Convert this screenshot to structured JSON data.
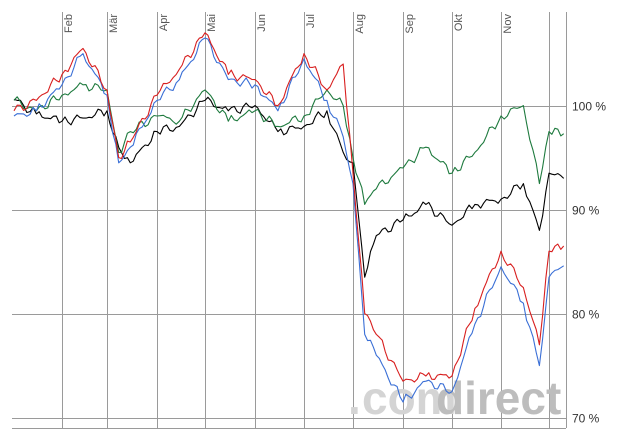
{
  "watermark": {
    "dot": ".",
    "com": "com",
    "direct": "direct"
  },
  "chart_data": {
    "type": "line",
    "title": "",
    "xlabel": "",
    "ylabel": "",
    "ylim": [
      69,
      109
    ],
    "x_ticks": [
      "Feb",
      "Mär",
      "Apr",
      "Mai",
      "Jun",
      "Jul",
      "Aug",
      "Sep",
      "Okt",
      "Nov"
    ],
    "y_ticks": [
      {
        "value": 100,
        "label": "100 %"
      },
      {
        "value": 90,
        "label": "90 %"
      },
      {
        "value": 80,
        "label": "80 %"
      },
      {
        "value": 70,
        "label": "70 %"
      }
    ],
    "grid": true,
    "series": [
      {
        "color": "#000000",
        "x": [
          "Jan 01",
          "Jan 15",
          "Feb 01",
          "Feb 15",
          "Mär 01",
          "Mär 08",
          "Mär 15",
          "Apr 01",
          "Apr 15",
          "Mai 01",
          "Mai 15",
          "Jun 01",
          "Jun 15",
          "Jul 01",
          "Jul 15",
          "Jul 25",
          "Aug 01",
          "Aug 08",
          "Aug 15",
          "Sep 01",
          "Sep 15",
          "Okt 01",
          "Okt 15",
          "Nov 01",
          "Nov 15",
          "Nov 25",
          "Dez 01",
          "Dez 10"
        ],
        "y": [
          100.6,
          99.2,
          98.5,
          98.8,
          99.5,
          96.0,
          94.5,
          97.5,
          98.0,
          100.5,
          99.5,
          100.0,
          97.5,
          98.0,
          99.5,
          95.5,
          94.5,
          83.5,
          87.5,
          89.0,
          90.5,
          88.5,
          90.5,
          91.0,
          92.5,
          88.0,
          93.5,
          93.0
        ]
      },
      {
        "color": "#1e7a3e",
        "x": [
          "Jan 01",
          "Jan 15",
          "Feb 01",
          "Feb 15",
          "Mär 01",
          "Mär 08",
          "Mär 15",
          "Apr 01",
          "Apr 15",
          "Mai 01",
          "Mai 15",
          "Jun 01",
          "Jun 15",
          "Jul 01",
          "Jul 15",
          "Jul 25",
          "Aug 01",
          "Aug 08",
          "Aug 15",
          "Sep 01",
          "Sep 15",
          "Okt 01",
          "Okt 15",
          "Nov 01",
          "Nov 15",
          "Nov 25",
          "Dez 01",
          "Dez 10"
        ],
        "y": [
          100.5,
          99.5,
          101.0,
          102.0,
          101.5,
          95.5,
          97.5,
          99.0,
          98.5,
          101.5,
          98.5,
          99.5,
          98.0,
          99.0,
          101.5,
          100.0,
          95.0,
          90.5,
          92.0,
          94.0,
          96.0,
          93.5,
          95.5,
          99.0,
          100.0,
          92.5,
          97.5,
          97.3
        ]
      },
      {
        "color": "#3a6fd6",
        "x": [
          "Jan 01",
          "Jan 15",
          "Feb 01",
          "Feb 15",
          "Mär 01",
          "Mär 08",
          "Mär 15",
          "Apr 01",
          "Apr 15",
          "Mai 01",
          "Mai 15",
          "Jun 01",
          "Jun 15",
          "Jul 01",
          "Jul 15",
          "Jul 25",
          "Aug 01",
          "Aug 08",
          "Aug 15",
          "Sep 01",
          "Sep 15",
          "Okt 01",
          "Okt 15",
          "Nov 01",
          "Nov 15",
          "Nov 25",
          "Dez 01",
          "Dez 10"
        ],
        "y": [
          99.0,
          99.5,
          102.0,
          105.0,
          101.0,
          94.5,
          96.0,
          100.5,
          102.5,
          106.5,
          102.5,
          102.0,
          99.5,
          104.5,
          100.5,
          97.0,
          92.5,
          78.0,
          76.0,
          71.5,
          73.5,
          72.5,
          79.0,
          84.5,
          81.0,
          75.0,
          83.5,
          84.6
        ]
      },
      {
        "color": "#d81f1f",
        "x": [
          "Jan 01",
          "Jan 15",
          "Feb 01",
          "Feb 15",
          "Mär 01",
          "Mär 08",
          "Mär 15",
          "Apr 01",
          "Apr 15",
          "Mai 01",
          "Mai 15",
          "Jun 01",
          "Jun 15",
          "Jul 01",
          "Jul 15",
          "Jul 25",
          "Aug 01",
          "Aug 08",
          "Aug 15",
          "Sep 01",
          "Sep 15",
          "Okt 01",
          "Okt 15",
          "Nov 01",
          "Nov 15",
          "Nov 25",
          "Dez 01",
          "Dez 10"
        ],
        "y": [
          99.5,
          100.5,
          103.0,
          105.5,
          101.5,
          95.0,
          96.5,
          101.0,
          103.5,
          107.0,
          103.0,
          102.5,
          100.0,
          105.0,
          101.5,
          104.0,
          93.5,
          80.0,
          78.0,
          73.5,
          74.0,
          74.0,
          80.5,
          86.0,
          82.5,
          77.0,
          86.0,
          86.5
        ]
      }
    ]
  }
}
